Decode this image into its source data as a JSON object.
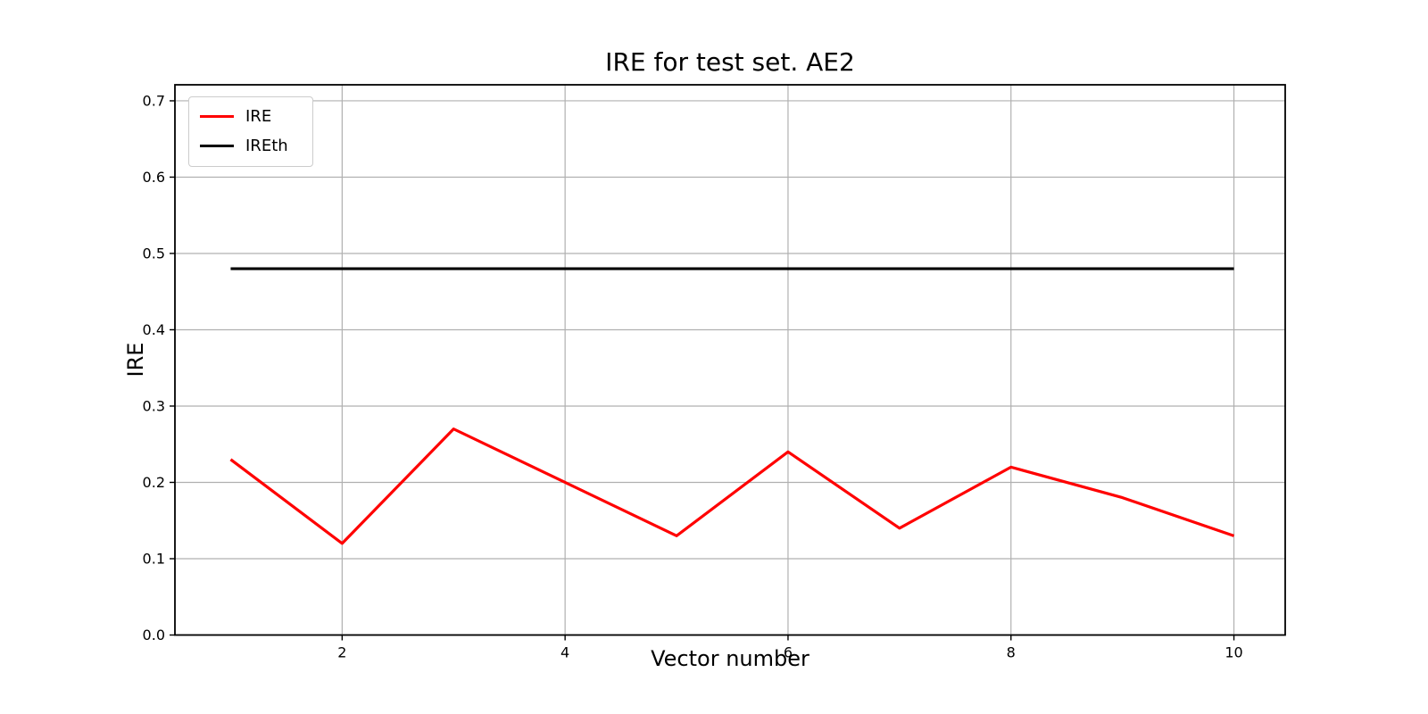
{
  "chart_data": {
    "type": "line",
    "title": "IRE for test set. AE2",
    "xlabel": "Vector number",
    "ylabel": "IRE",
    "x": [
      1,
      2,
      3,
      4,
      5,
      6,
      7,
      8,
      9,
      10
    ],
    "series": [
      {
        "name": "IRE",
        "color": "#ff0000",
        "values": [
          0.23,
          0.12,
          0.27,
          0.2,
          0.13,
          0.24,
          0.14,
          0.22,
          0.18,
          0.13
        ]
      },
      {
        "name": "IREth",
        "color": "#000000",
        "values": [
          0.48,
          0.48,
          0.48,
          0.48,
          0.48,
          0.48,
          0.48,
          0.48,
          0.48,
          0.48
        ]
      }
    ],
    "xticks": [
      2,
      4,
      6,
      8,
      10
    ],
    "xtick_labels": [
      "2",
      "4",
      "6",
      "8",
      "10"
    ],
    "yticks": [
      0.0,
      0.1,
      0.2,
      0.3,
      0.4,
      0.5,
      0.6,
      0.7
    ],
    "ytick_labels": [
      "0.0",
      "0.1",
      "0.2",
      "0.3",
      "0.4",
      "0.5",
      "0.6",
      "0.7"
    ],
    "xlim": [
      0.5,
      10.46
    ],
    "ylim": [
      0.0,
      0.721
    ],
    "grid": true,
    "grid_color": "#b0b0b0",
    "axis_color": "#000000",
    "background_color": "#ffffff",
    "legend_position": "upper-left"
  },
  "legend": {
    "entries": [
      {
        "label": "IRE",
        "color": "#ff0000"
      },
      {
        "label": "IREth",
        "color": "#000000"
      }
    ]
  }
}
